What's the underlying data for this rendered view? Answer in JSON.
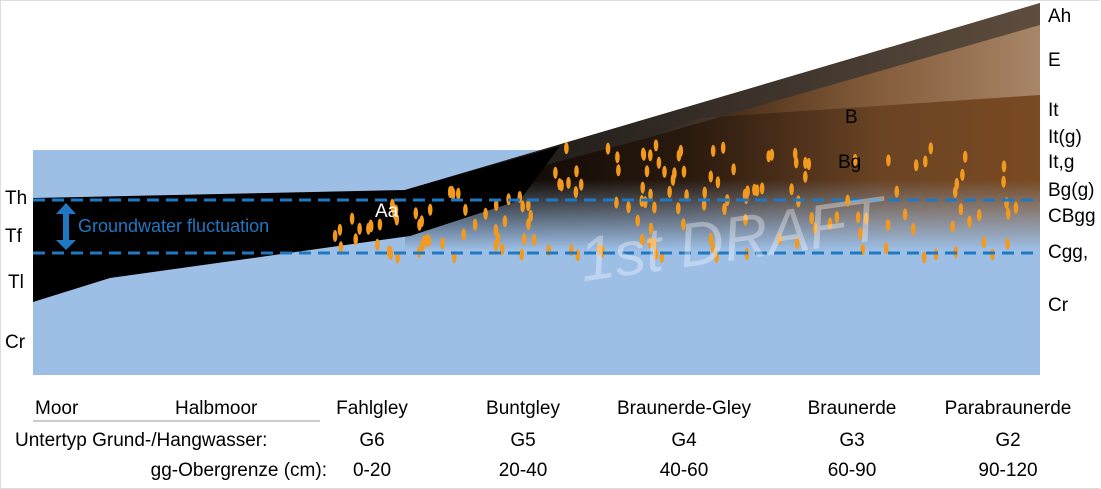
{
  "left_horizons": [
    "Th",
    "Tf",
    "Tl",
    "Cr"
  ],
  "right_horizons": [
    "Ah",
    "E",
    "It",
    "It(g)",
    "It,g",
    "Bg(g)",
    "CBgg",
    "Cgg,",
    "Cr"
  ],
  "inner_labels": {
    "aa": "Aa",
    "b": "B",
    "bg": "Bg"
  },
  "groundwater_label": "Groundwater fluctuation",
  "watermark": "1st DRAFT",
  "soil_types": [
    "Moor",
    "Halbmoor",
    "Fahlgley",
    "Buntgley",
    "Braunerde-Gley",
    "Braunerde",
    "Parabraunerde"
  ],
  "subtype_label": "Untertyp Grund-/Hangwasser:",
  "subtypes": [
    "G6",
    "G5",
    "G4",
    "G3",
    "G2"
  ],
  "gg_label": "gg-Obergrenze (cm):",
  "gg_values": [
    "0-20",
    "20-40",
    "40-60",
    "60-90",
    "90-120"
  ],
  "colors": {
    "water": "#9dbfe6",
    "groundwater_line": "#1f78c1",
    "mottles": "#f39a1e",
    "peat": "#000000",
    "brown": "#7a4a22"
  }
}
